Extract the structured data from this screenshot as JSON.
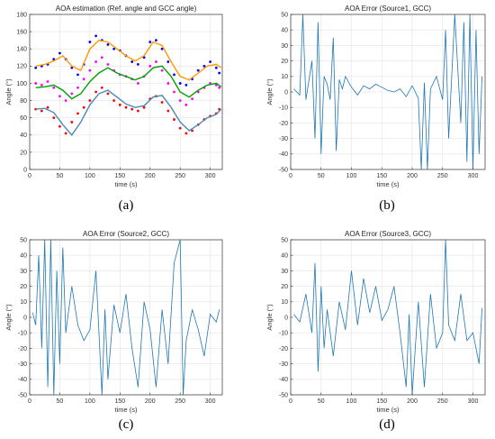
{
  "figure": {
    "captions": [
      "(a)",
      "(b)",
      "(c)",
      "(d)"
    ]
  },
  "chart_data": [
    {
      "id": "a",
      "type": "scatter",
      "title": "AOA estimation (Ref. angle and GCC angle)",
      "xlabel": "time (s)",
      "ylabel": "Angle (°)",
      "xlim": [
        0,
        320
      ],
      "ylim": [
        0,
        180
      ],
      "xticks": [
        0,
        50,
        100,
        150,
        200,
        250,
        300
      ],
      "yticks": [
        0,
        20,
        40,
        60,
        80,
        100,
        120,
        140,
        160,
        180
      ],
      "grid": true,
      "series": [
        {
          "color": "#0000ff",
          "marker": "points",
          "x": [
            10,
            20,
            30,
            40,
            50,
            60,
            70,
            80,
            90,
            100,
            110,
            120,
            130,
            140,
            150,
            160,
            170,
            180,
            190,
            200,
            210,
            220,
            230,
            240,
            250,
            260,
            270,
            280,
            290,
            300,
            310,
            315
          ],
          "y": [
            118,
            120,
            122,
            128,
            135,
            128,
            118,
            110,
            122,
            148,
            155,
            150,
            145,
            140,
            138,
            132,
            125,
            122,
            130,
            148,
            150,
            140,
            125,
            110,
            100,
            98,
            105,
            115,
            120,
            125,
            118,
            112
          ]
        },
        {
          "color": "#ff0000",
          "marker": "points",
          "x": [
            10,
            20,
            30,
            40,
            50,
            60,
            70,
            80,
            90,
            100,
            110,
            120,
            130,
            140,
            150,
            160,
            170,
            180,
            190,
            200,
            210,
            220,
            230,
            240,
            250,
            260,
            270,
            280,
            290,
            300,
            310,
            315
          ],
          "y": [
            70,
            68,
            72,
            60,
            50,
            42,
            55,
            65,
            72,
            80,
            90,
            95,
            88,
            80,
            75,
            72,
            70,
            68,
            72,
            82,
            85,
            78,
            68,
            58,
            48,
            42,
            45,
            52,
            58,
            62,
            65,
            70
          ]
        },
        {
          "color": "#ff00ff",
          "marker": "points",
          "x": [
            10,
            20,
            30,
            40,
            50,
            60,
            70,
            80,
            90,
            100,
            110,
            120,
            130,
            140,
            150,
            160,
            170,
            180,
            190,
            200,
            210,
            220,
            230,
            240,
            250,
            260,
            270,
            280,
            290,
            300,
            310,
            315
          ],
          "y": [
            100,
            98,
            102,
            95,
            85,
            80,
            88,
            95,
            105,
            115,
            125,
            130,
            122,
            115,
            110,
            108,
            105,
            100,
            108,
            120,
            125,
            115,
            100,
            90,
            80,
            75,
            82,
            90,
            95,
            100,
            98,
            95
          ]
        },
        {
          "color": "#00a000",
          "marker": "line",
          "x": [
            10,
            25,
            40,
            55,
            70,
            85,
            100,
            115,
            130,
            145,
            160,
            175,
            190,
            205,
            220,
            235,
            250,
            265,
            280,
            295,
            310,
            318
          ],
          "y": [
            95,
            96,
            98,
            92,
            82,
            88,
            102,
            112,
            118,
            112,
            108,
            104,
            108,
            118,
            120,
            108,
            90,
            84,
            92,
            98,
            100,
            96
          ]
        },
        {
          "color": "#ff9900",
          "marker": "line",
          "x": [
            10,
            25,
            40,
            55,
            70,
            85,
            100,
            115,
            130,
            145,
            160,
            175,
            190,
            205,
            220,
            235,
            250,
            265,
            280,
            295,
            310,
            318
          ],
          "y": [
            120,
            122,
            126,
            132,
            120,
            115,
            140,
            150,
            148,
            140,
            132,
            126,
            132,
            148,
            144,
            125,
            108,
            104,
            112,
            120,
            122,
            118
          ]
        },
        {
          "color": "#4a8ab8",
          "marker": "line",
          "x": [
            10,
            25,
            40,
            55,
            70,
            85,
            100,
            115,
            130,
            145,
            160,
            175,
            190,
            205,
            220,
            235,
            250,
            265,
            280,
            295,
            310,
            318
          ],
          "y": [
            70,
            71,
            66,
            52,
            40,
            55,
            75,
            88,
            92,
            84,
            76,
            72,
            74,
            84,
            86,
            72,
            55,
            45,
            52,
            60,
            64,
            70
          ]
        }
      ]
    },
    {
      "id": "b",
      "type": "line",
      "title": "AOA Error (Source1, GCC)",
      "xlabel": "time (s)",
      "ylabel": "Angle (°)",
      "xlim": [
        0,
        320
      ],
      "ylim": [
        -50,
        50
      ],
      "xticks": [
        0,
        50,
        100,
        150,
        200,
        250,
        300
      ],
      "yticks": [
        -50,
        -40,
        -30,
        -20,
        -10,
        0,
        10,
        20,
        30,
        40,
        50
      ],
      "grid": true,
      "color": "#1f77b4",
      "series": [
        {
          "x": [
            5,
            15,
            20,
            25,
            35,
            40,
            45,
            50,
            55,
            60,
            65,
            70,
            75,
            80,
            85,
            90,
            100,
            110,
            120,
            130,
            140,
            150,
            160,
            170,
            180,
            190,
            200,
            210,
            215,
            220,
            225,
            230,
            240,
            250,
            255,
            260,
            270,
            280,
            285,
            290,
            295,
            300,
            305,
            310,
            315
          ],
          "y": [
            2,
            -2,
            50,
            -5,
            20,
            -30,
            45,
            -40,
            10,
            5,
            -5,
            35,
            -38,
            8,
            2,
            10,
            3,
            -2,
            4,
            2,
            5,
            3,
            1,
            0,
            2,
            -3,
            4,
            -4,
            -50,
            6,
            -50,
            2,
            10,
            -5,
            40,
            -30,
            50,
            -20,
            45,
            -45,
            50,
            -50,
            40,
            -40,
            10
          ]
        }
      ]
    },
    {
      "id": "c",
      "type": "line",
      "title": "AOA Error (Source2, GCC)",
      "xlabel": "time (s)",
      "ylabel": "Angle (°)",
      "xlim": [
        0,
        320
      ],
      "ylim": [
        -50,
        50
      ],
      "xticks": [
        0,
        50,
        100,
        150,
        200,
        250,
        300
      ],
      "yticks": [
        -50,
        -40,
        -30,
        -20,
        -10,
        0,
        10,
        20,
        30,
        40,
        50
      ],
      "grid": true,
      "color": "#1f77b4",
      "series": [
        {
          "x": [
            5,
            10,
            15,
            20,
            25,
            30,
            35,
            40,
            45,
            50,
            55,
            60,
            70,
            80,
            90,
            100,
            110,
            120,
            125,
            130,
            140,
            150,
            160,
            170,
            180,
            190,
            200,
            210,
            220,
            230,
            240,
            250,
            255,
            260,
            270,
            280,
            290,
            300,
            310,
            315
          ],
          "y": [
            3,
            -5,
            40,
            -20,
            50,
            -45,
            50,
            -50,
            30,
            -30,
            45,
            -10,
            20,
            -5,
            -15,
            -8,
            30,
            -50,
            5,
            -40,
            8,
            -10,
            15,
            -20,
            -45,
            10,
            -8,
            -45,
            5,
            -30,
            35,
            50,
            -50,
            -15,
            5,
            -8,
            -25,
            2,
            -3,
            5
          ]
        }
      ]
    },
    {
      "id": "d",
      "type": "line",
      "title": "AOA Error (Source3, GCC)",
      "xlabel": "time (s)",
      "ylabel": "Angle (°)",
      "xlim": [
        0,
        320
      ],
      "ylim": [
        -50,
        50
      ],
      "xticks": [
        0,
        50,
        100,
        150,
        200,
        250,
        300
      ],
      "yticks": [
        -50,
        -40,
        -30,
        -20,
        -10,
        0,
        10,
        20,
        30,
        40,
        50
      ],
      "grid": true,
      "color": "#1f77b4",
      "series": [
        {
          "x": [
            5,
            15,
            25,
            35,
            40,
            45,
            50,
            55,
            60,
            70,
            80,
            90,
            100,
            110,
            120,
            130,
            140,
            150,
            160,
            170,
            180,
            190,
            195,
            200,
            210,
            220,
            230,
            240,
            250,
            255,
            260,
            270,
            280,
            290,
            300,
            310,
            315
          ],
          "y": [
            2,
            -3,
            15,
            -10,
            35,
            -35,
            20,
            -20,
            5,
            -25,
            10,
            -8,
            30,
            -5,
            25,
            3,
            20,
            -2,
            5,
            20,
            -10,
            -45,
            2,
            -50,
            10,
            -45,
            15,
            -20,
            -10,
            50,
            -5,
            -15,
            15,
            -15,
            -10,
            -30,
            6
          ]
        }
      ]
    }
  ]
}
